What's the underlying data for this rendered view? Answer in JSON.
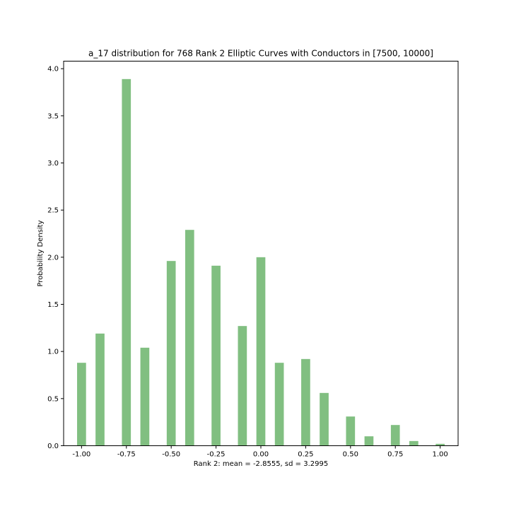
{
  "chart_data": {
    "type": "bar",
    "title": "a_17 distribution for 768 Rank 2 Elliptic Curves with Conductors in [7500, 10000]",
    "xlabel": "Rank 2: mean = -2.8555, sd = 3.2995",
    "ylabel": "Probability Density",
    "xlim": [
      -1.1,
      1.1
    ],
    "ylim": [
      0,
      4.08
    ],
    "xticks": [
      -1.0,
      -0.75,
      -0.5,
      -0.25,
      0.0,
      0.25,
      0.5,
      0.75,
      1.0
    ],
    "xtick_labels": [
      "-1.00",
      "-0.75",
      "-0.50",
      "-0.25",
      "0.00",
      "0.25",
      "0.50",
      "0.75",
      "1.00"
    ],
    "yticks": [
      0.0,
      0.5,
      1.0,
      1.5,
      2.0,
      2.5,
      3.0,
      3.5,
      4.0
    ],
    "ytick_labels": [
      "0.0",
      "0.5",
      "1.0",
      "1.5",
      "2.0",
      "2.5",
      "3.0",
      "3.5",
      "4.0"
    ],
    "bar_width": 0.05,
    "x": [
      -1.0,
      -0.897,
      -0.75,
      -0.647,
      -0.5,
      -0.397,
      -0.25,
      -0.103,
      0.0,
      0.103,
      0.25,
      0.353,
      0.5,
      0.603,
      0.75,
      0.853,
      1.0
    ],
    "values": [
      0.88,
      1.19,
      3.89,
      1.04,
      1.96,
      2.29,
      1.91,
      1.27,
      2.0,
      0.88,
      0.92,
      0.56,
      0.31,
      0.1,
      0.22,
      0.05,
      0.02
    ],
    "color": "#81bf81",
    "grid": false
  }
}
